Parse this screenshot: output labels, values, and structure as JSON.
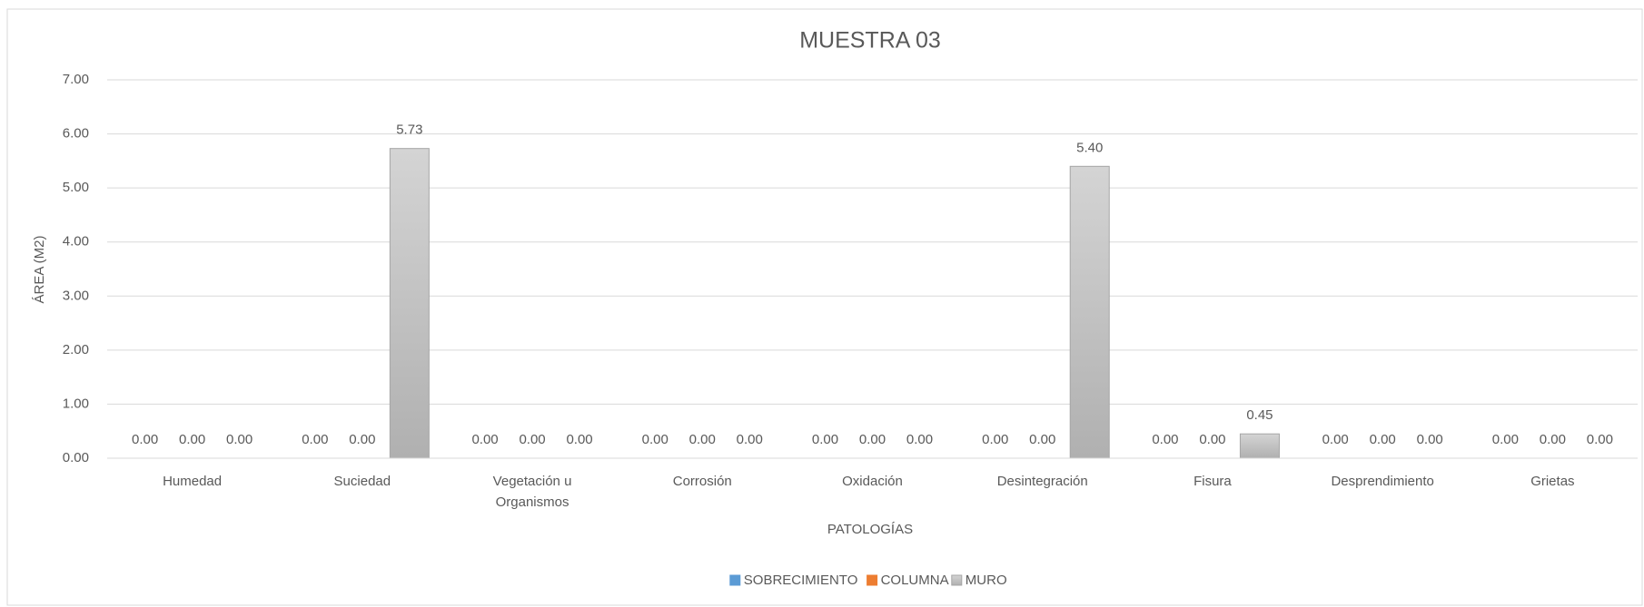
{
  "chart_data": {
    "type": "bar",
    "title": "MUESTRA 03",
    "x_label": "PATOLOGÍAS",
    "y_label": "ÁREA (M2)",
    "categories": [
      "Humedad",
      "Suciedad",
      "Vegetación u Organismos",
      "Corrosión",
      "Oxidación",
      "Desintegración",
      "Fisura",
      "Desprendimiento",
      "Grietas"
    ],
    "series": [
      {
        "name": "SOBRECIMIENTO",
        "color": "#5b9bd5",
        "values": [
          0,
          0,
          0,
          0,
          0,
          0,
          0,
          0,
          0
        ],
        "value_labels": [
          "0.00",
          "0.00",
          "0.00",
          "0.00",
          "0.00",
          "0.00",
          "0.00",
          "0.00",
          "0.00"
        ]
      },
      {
        "name": "COLUMNA",
        "color": "#ed7d31",
        "values": [
          0,
          0,
          0,
          0,
          0,
          0,
          0,
          0,
          0
        ],
        "value_labels": [
          "0.00",
          "0.00",
          "0.00",
          "0.00",
          "0.00",
          "0.00",
          "0.00",
          "0.00",
          "0.00"
        ]
      },
      {
        "name": "MURO",
        "color": "#bfbfbf",
        "values": [
          0,
          5.73,
          0,
          0,
          0,
          5.4,
          0.45,
          0,
          0
        ],
        "value_labels": [
          "0.00",
          "5.73",
          "0.00",
          "0.00",
          "0.00",
          "5.40",
          "0.45",
          "0.00",
          "0.00"
        ]
      }
    ],
    "ylim": [
      0,
      7
    ],
    "yticks": [
      {
        "value": 0,
        "label": "0.00"
      },
      {
        "value": 1,
        "label": "1.00"
      },
      {
        "value": 2,
        "label": "2.00"
      },
      {
        "value": 3,
        "label": "3.00"
      },
      {
        "value": 4,
        "label": "4.00"
      },
      {
        "value": 5,
        "label": "5.00"
      },
      {
        "value": 6,
        "label": "6.00"
      },
      {
        "value": 7,
        "label": "7.00"
      }
    ],
    "grid": true,
    "legend": "bottom"
  }
}
